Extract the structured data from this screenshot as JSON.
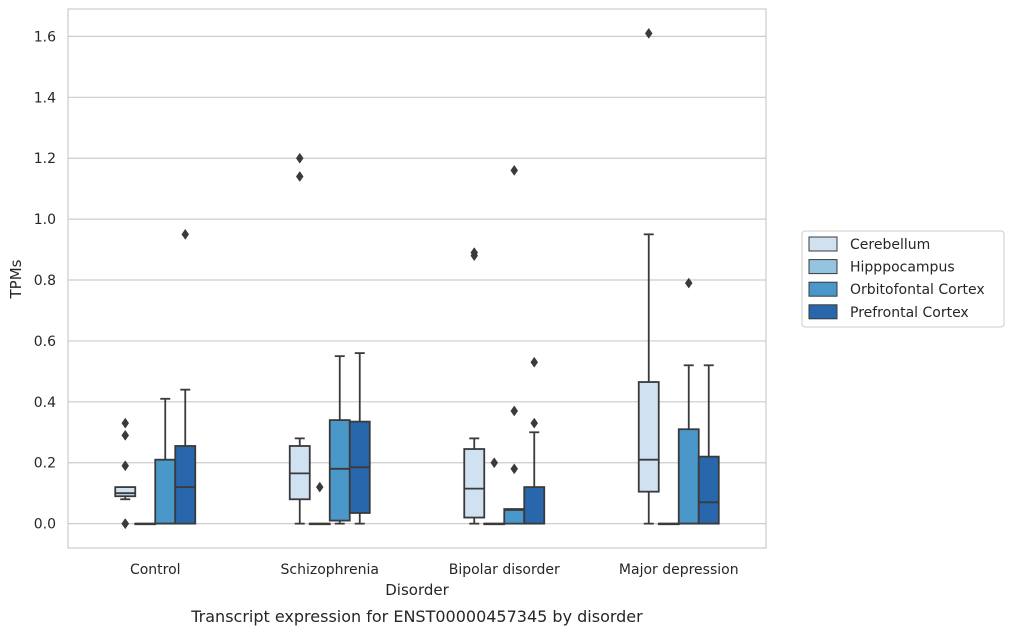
{
  "caption": "Transcript expression for ENST00000457345 by disorder",
  "chart_data": {
    "type": "box",
    "title": "",
    "xlabel": "Disorder",
    "ylabel": "TPMs",
    "categories": [
      "Control",
      "Schizophrenia",
      "Bipolar disorder",
      "Major depression"
    ],
    "ylim": [
      -0.08,
      1.69
    ],
    "yticks": [
      "0.0",
      "0.2",
      "0.4",
      "0.6",
      "0.8",
      "1.0",
      "1.2",
      "1.4",
      "1.6"
    ],
    "grid": true,
    "legend_position": "right",
    "series": [
      {
        "name": "Cerebellum",
        "color": "#d0e1f2",
        "boxes": [
          {
            "q1": 0.09,
            "median": 0.1,
            "q3": 0.12,
            "whislo": 0.08,
            "whishi": 0.12,
            "fliers": [
              0.33,
              0.29,
              0.19,
              0.0,
              0.0
            ]
          },
          {
            "q1": 0.08,
            "median": 0.165,
            "q3": 0.255,
            "whislo": 0.0,
            "whishi": 0.28,
            "fliers": [
              1.2,
              1.14
            ]
          },
          {
            "q1": 0.02,
            "median": 0.115,
            "q3": 0.245,
            "whislo": 0.0,
            "whishi": 0.28,
            "fliers": [
              0.89,
              0.88
            ]
          },
          {
            "q1": 0.105,
            "median": 0.21,
            "q3": 0.465,
            "whislo": 0.0,
            "whishi": 0.95,
            "fliers": [
              1.61
            ]
          }
        ]
      },
      {
        "name": "Hipppocampus",
        "color": "#94c4df",
        "boxes": [
          {
            "q1": 0.0,
            "median": 0.0,
            "q3": 0.0,
            "whislo": 0.0,
            "whishi": 0.0,
            "fliers": []
          },
          {
            "q1": 0.0,
            "median": 0.0,
            "q3": 0.0,
            "whislo": 0.0,
            "whishi": 0.0,
            "fliers": [
              0.12
            ]
          },
          {
            "q1": 0.0,
            "median": 0.0,
            "q3": 0.0,
            "whislo": 0.0,
            "whishi": 0.0,
            "fliers": [
              0.2
            ]
          },
          {
            "q1": 0.0,
            "median": 0.0,
            "q3": 0.0,
            "whislo": 0.0,
            "whishi": 0.0,
            "fliers": []
          }
        ]
      },
      {
        "name": "Orbitofontal Cortex",
        "color": "#4a98c9",
        "boxes": [
          {
            "q1": 0.0,
            "median": 0.0,
            "q3": 0.21,
            "whislo": 0.0,
            "whishi": 0.41,
            "fliers": []
          },
          {
            "q1": 0.01,
            "median": 0.18,
            "q3": 0.34,
            "whislo": 0.0,
            "whishi": 0.55,
            "fliers": []
          },
          {
            "q1": 0.0,
            "median": 0.045,
            "q3": 0.048,
            "whislo": 0.0,
            "whishi": 0.048,
            "fliers": [
              1.16,
              0.37,
              0.18
            ]
          },
          {
            "q1": 0.0,
            "median": 0.0,
            "q3": 0.31,
            "whislo": 0.0,
            "whishi": 0.52,
            "fliers": [
              0.79
            ]
          }
        ]
      },
      {
        "name": "Prefrontal Cortex",
        "color": "#2967ac",
        "boxes": [
          {
            "q1": 0.0,
            "median": 0.12,
            "q3": 0.255,
            "whislo": 0.0,
            "whishi": 0.44,
            "fliers": [
              0.95
            ]
          },
          {
            "q1": 0.035,
            "median": 0.185,
            "q3": 0.335,
            "whislo": 0.0,
            "whishi": 0.56,
            "fliers": []
          },
          {
            "q1": 0.0,
            "median": 0.0,
            "q3": 0.12,
            "whislo": 0.0,
            "whishi": 0.3,
            "fliers": [
              0.53,
              0.33
            ]
          },
          {
            "q1": 0.0,
            "median": 0.07,
            "q3": 0.22,
            "whislo": 0.0,
            "whishi": 0.52,
            "fliers": []
          }
        ]
      }
    ]
  }
}
